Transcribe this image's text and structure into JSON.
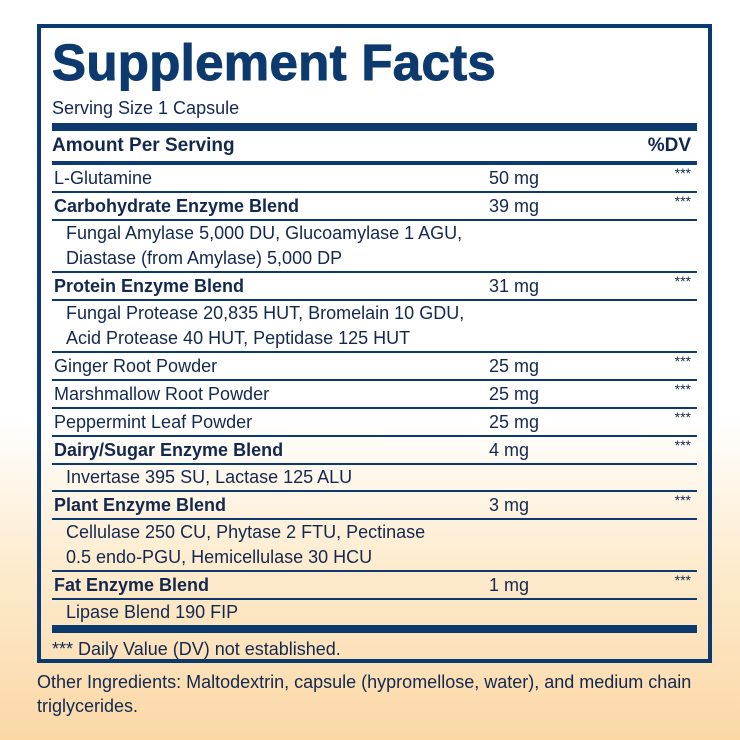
{
  "title": "Supplement Facts",
  "serving_size": "Serving Size 1 Capsule",
  "header": {
    "amount": "Amount Per Serving",
    "dv": "%DV"
  },
  "rows": [
    {
      "name": "L-Glutamine",
      "amount": "50 mg",
      "dv": "***",
      "bold": false
    },
    {
      "name": "Carbohydrate Enzyme Blend",
      "amount": "39 mg",
      "dv": "***",
      "bold": true,
      "sub": [
        "Fungal Amylase 5,000 DU, Glucoamylase 1 AGU,",
        "Diastase (from Amylase) 5,000 DP"
      ]
    },
    {
      "name": "Protein Enzyme Blend",
      "amount": "31 mg",
      "dv": "***",
      "bold": true,
      "sub": [
        "Fungal Protease 20,835 HUT, Bromelain 10 GDU,",
        "Acid Protease 40 HUT, Peptidase 125 HUT"
      ]
    },
    {
      "name": "Ginger Root Powder",
      "amount": "25 mg",
      "dv": "***",
      "bold": false
    },
    {
      "name": "Marshmallow Root Powder",
      "amount": "25 mg",
      "dv": "***",
      "bold": false
    },
    {
      "name": "Peppermint Leaf Powder",
      "amount": "25 mg",
      "dv": "***",
      "bold": false
    },
    {
      "name": "Dairy/Sugar Enzyme Blend",
      "amount": "4 mg",
      "dv": "***",
      "bold": true,
      "sub": [
        "Invertase 395 SU, Lactase 125 ALU"
      ]
    },
    {
      "name": "Plant Enzyme Blend",
      "amount": "3 mg",
      "dv": "***",
      "bold": true,
      "sub": [
        "Cellulase 250 CU, Phytase 2 FTU, Pectinase",
        "0.5 endo-PGU, Hemicellulase 30 HCU"
      ]
    },
    {
      "name": "Fat Enzyme Blend",
      "amount": "1 mg",
      "dv": "***",
      "bold": true,
      "sub": [
        "Lipase Blend 190 FIP"
      ]
    }
  ],
  "footnote": "*** Daily Value (DV) not established.",
  "other_ingredients": "Other Ingredients: Maltodextrin, capsule (hypromellose, water), and medium chain triglycerides.",
  "colors": {
    "navy": "#0d3a6e",
    "text": "#13284f",
    "peach": "#fbd8a6"
  }
}
